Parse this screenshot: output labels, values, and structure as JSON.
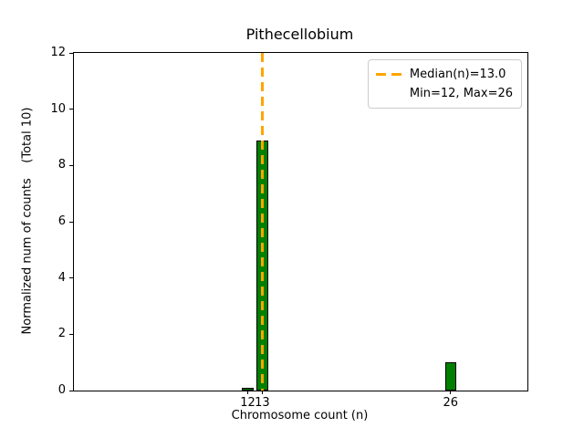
{
  "chart_data": {
    "type": "bar",
    "title": "Pithecellobium",
    "xlabel": "Chromosome count (n)",
    "ylabel": "Normalized num of counts    (Total 10)",
    "x": [
      12,
      13,
      26
    ],
    "values": [
      0.1,
      8.9,
      1.0
    ],
    "bar_width": 0.8,
    "xlim": [
      0,
      31.3
    ],
    "ylim": [
      0,
      12
    ],
    "xticks": [
      12,
      13,
      26
    ],
    "yticks": [
      0,
      2,
      4,
      6,
      8,
      10,
      12
    ],
    "grid": false,
    "median_line": {
      "x": 13.0,
      "style": "dashed",
      "color": "#FFA500",
      "linewidth": 2
    },
    "legend": {
      "position": "upper right",
      "items": [
        {
          "label": "Median(n)=13.0",
          "marker": "orange-dashed-line"
        },
        {
          "label": "Min=12, Max=26",
          "marker": "none"
        }
      ]
    },
    "colors": {
      "bar_fill": "#008000",
      "bar_edge": "#000000",
      "median_line": "#FFA500",
      "spines": "#000000",
      "background": "#ffffff"
    }
  }
}
